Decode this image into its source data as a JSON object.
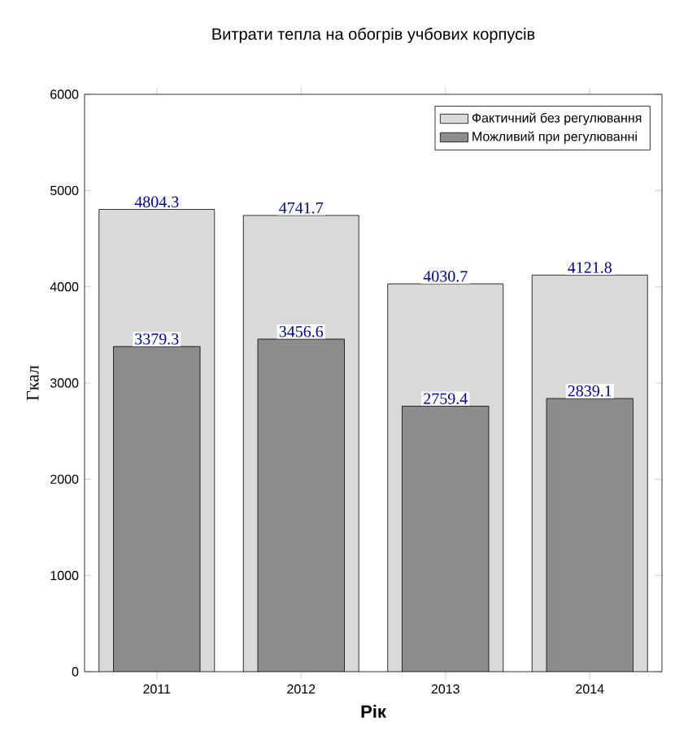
{
  "chart_data": {
    "type": "bar",
    "title": "Витрати тепла на обогрів учбових корпусів",
    "xlabel": "Рік",
    "ylabel": "Гкал",
    "categories": [
      "2011",
      "2012",
      "2013",
      "2014"
    ],
    "series": [
      {
        "name": "Фактичний без регулювання",
        "color": "#d9d9d9",
        "values": [
          4804.3,
          4741.7,
          4030.7,
          4121.8
        ]
      },
      {
        "name": "Можливий при регулюванні",
        "color": "#8c8c8c",
        "values": [
          3379.3,
          3456.6,
          2759.4,
          2839.1
        ]
      }
    ],
    "ylim": [
      0,
      6000
    ],
    "yticks": [
      0,
      1000,
      2000,
      3000,
      4000,
      5000,
      6000
    ],
    "legend": "top right",
    "data_labels": true,
    "grid": false
  }
}
